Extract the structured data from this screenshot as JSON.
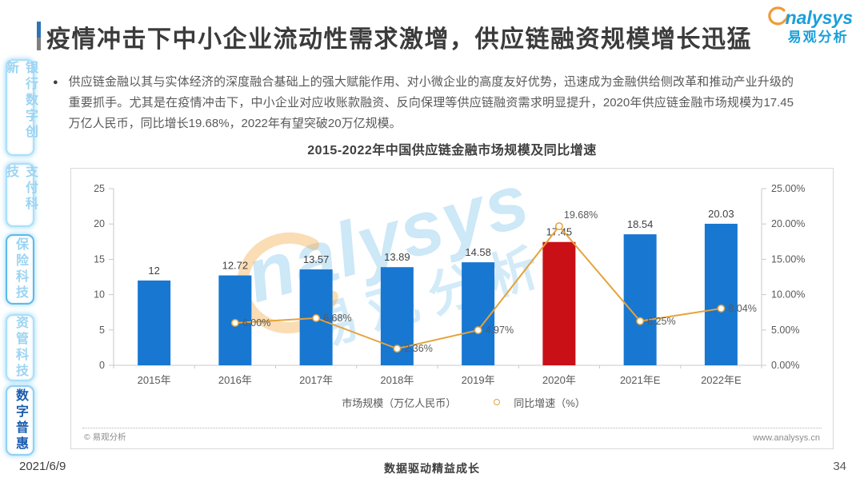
{
  "header": {
    "title": "疫情冲击下中小企业流动性需求激增，供应链融资规模增长迅猛",
    "logo": {
      "latin": "nalysys",
      "cn": "易观分析"
    }
  },
  "sidebar": {
    "items": [
      {
        "label": "银行数字创新",
        "active": false
      },
      {
        "label": "支付科技",
        "active": false
      },
      {
        "label": "保险科技",
        "active": false
      },
      {
        "label": "资管科技",
        "active": false
      },
      {
        "label": "数字普惠",
        "active": true
      }
    ]
  },
  "body": {
    "paragraph": "供应链金融以其与实体经济的深度融合基础上的强大赋能作用、对小微企业的高度友好优势，迅速成为金融供给侧改革和推动产业升级的重要抓手。尤其是在疫情冲击下，中小企业对应收账款融资、反向保理等供应链融资需求明显提升，2020年供应链金融市场规模为17.45万亿人民币，同比增长19.68%，2022年有望突破20万亿规模。"
  },
  "chart_data": {
    "type": "combo-bar-line",
    "title": "2015-2022年中国供应链金融市场规模及同比增速",
    "categories": [
      "2015年",
      "2016年",
      "2017年",
      "2018年",
      "2019年",
      "2020年",
      "2021年E",
      "2022年E"
    ],
    "series": [
      {
        "name": "市场规模（万亿人民币）",
        "type": "bar",
        "axis": "left",
        "values": [
          12,
          12.72,
          13.57,
          13.89,
          14.58,
          17.45,
          18.54,
          20.03
        ],
        "labels": [
          "12",
          "12.72",
          "13.57",
          "13.89",
          "14.58",
          "17.45",
          "18.54",
          "20.03"
        ]
      },
      {
        "name": "同比增速（%）",
        "type": "line",
        "axis": "right",
        "values": [
          null,
          6.0,
          6.68,
          2.36,
          4.97,
          19.68,
          6.25,
          8.04
        ],
        "labels": [
          "",
          "6.00%",
          "6.68%",
          "2.36%",
          "4.97%",
          "19.68%",
          "6.25%",
          "8.04%"
        ]
      }
    ],
    "left_axis": {
      "min": 0,
      "max": 25,
      "step": 5,
      "ticks": [
        "0",
        "5",
        "10",
        "15",
        "20",
        "25"
      ]
    },
    "right_axis": {
      "min": 0,
      "max": 25,
      "step": 5,
      "ticks": [
        "0.00%",
        "5.00%",
        "10.00%",
        "15.00%",
        "20.00%",
        "25.00%"
      ]
    },
    "highlight_index": 5,
    "colors": {
      "bar": "#1877D1",
      "bar_highlight": "#C81016",
      "line": "#E5A33C"
    },
    "legend_position": "bottom",
    "grid": false
  },
  "panel_footer": {
    "copyright": "© 易观分析",
    "website": "www.analysys.cn"
  },
  "page_footer": {
    "date": "2021/6/9",
    "slogan": "数据驱动精益成长",
    "page_number": "34"
  }
}
